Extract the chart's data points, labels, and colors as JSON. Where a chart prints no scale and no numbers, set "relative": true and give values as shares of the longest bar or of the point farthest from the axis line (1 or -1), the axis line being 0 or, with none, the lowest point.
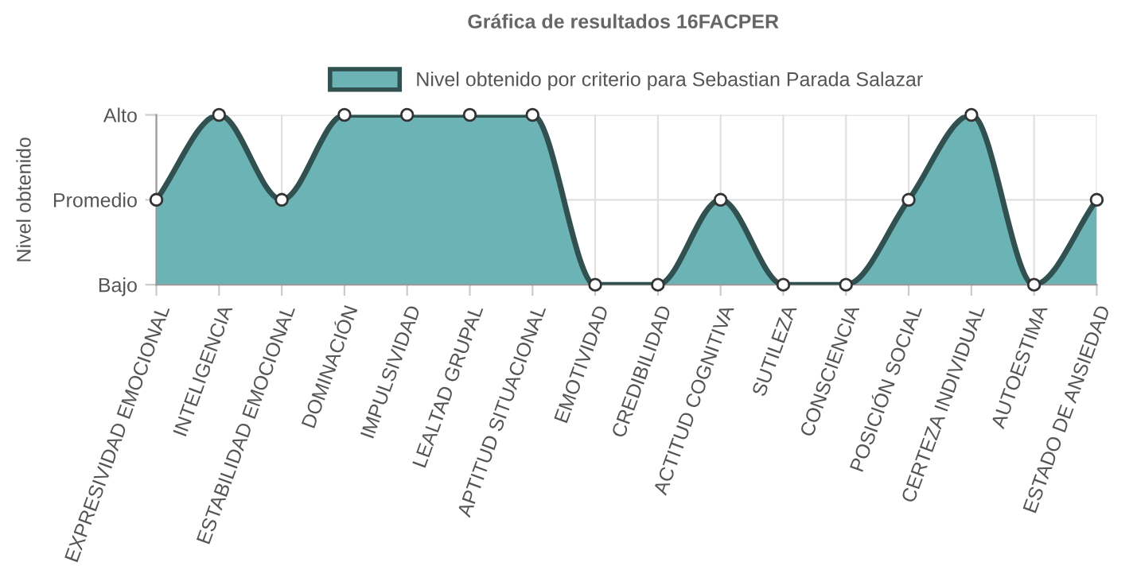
{
  "chart_data": {
    "type": "area",
    "title": "Gráfica de resultados 16FACPER",
    "ylabel": "Nivel obtenido",
    "categories": [
      "EXPRESIVIDAD EMOCIONAL",
      "INTELIGENCIA",
      "ESTABILIDAD EMOCIONAL",
      "DOMINACIÓN",
      "IMPULSIVIDAD",
      "LEALTAD GRUPAL",
      "APTITUD SITUACIONAL",
      "EMOTIVIDAD",
      "CREDIBILIDAD",
      "ACTITUD COGNITIVA",
      "SUTILEZA",
      "CONSCIENCIA",
      "POSICIÓN SOCIAL",
      "CERTEZA INDIVIDUAL",
      "AUTOESTIMA",
      "ESTADO DE ANSIEDAD"
    ],
    "series": [
      {
        "name": "Nivel obtenido por criterio para Sebastian Parada Salazar",
        "color": "#6cb3b5",
        "values": [
          0.5,
          1,
          0.5,
          1,
          1,
          1,
          1,
          0,
          0,
          0.5,
          0,
          0,
          0.5,
          1,
          0,
          0.5
        ]
      }
    ],
    "relative": true,
    "annotations": [
      "Bajo",
      "Promedio",
      "Alto"
    ],
    "grid": true,
    "legend": "top",
    "marker": "circle",
    "line_style": "solid"
  }
}
